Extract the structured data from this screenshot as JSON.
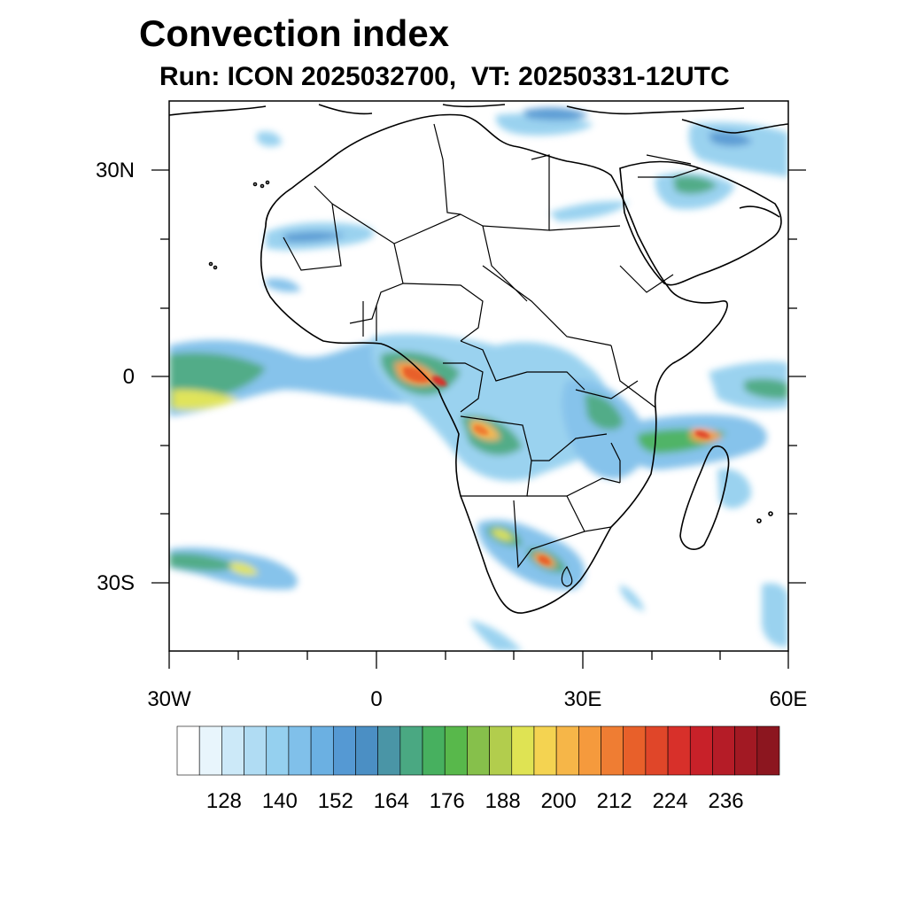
{
  "title": "Convection index",
  "subtitle": "Run: ICON 2025032700,  VT: 20250331-12UTC",
  "map": {
    "lon_range": [
      -30,
      60
    ],
    "lat_range": [
      -40,
      40
    ],
    "lon_tick_labels": [
      "30W",
      "0",
      "30E",
      "60E"
    ],
    "lat_tick_labels": [
      "30N",
      "0",
      "30S"
    ],
    "field": "convection index",
    "features": [
      "coastlines",
      "country borders"
    ]
  },
  "colorbar": {
    "labels": [
      "128",
      "140",
      "152",
      "164",
      "176",
      "188",
      "200",
      "212",
      "224",
      "236"
    ],
    "colors": [
      "#ffffff",
      "#e8f5fc",
      "#cce9f8",
      "#b0dcf3",
      "#95d0ef",
      "#80c0ea",
      "#6bb0e2",
      "#5599d3",
      "#4b8fc4",
      "#4a95a6",
      "#4aa882",
      "#47b05f",
      "#58b84b",
      "#86c04b",
      "#b2cd4d",
      "#dfe353",
      "#f4d351",
      "#f6b648",
      "#f59a3d",
      "#ef7d33",
      "#e8602a",
      "#e04629",
      "#d8302a",
      "#c82129",
      "#b51c27",
      "#a21923",
      "#8c161f"
    ]
  },
  "chart_data": {
    "type": "heatmap",
    "title": "Convection index",
    "subtitle": "Run: ICON 2025032700,  VT: 20250331-12UTC",
    "x_ticks": [
      "30W",
      "0",
      "30E",
      "60E"
    ],
    "y_ticks": [
      "30N",
      "0",
      "30S"
    ],
    "xlim": [
      -30,
      60
    ],
    "ylim": [
      -40,
      40
    ],
    "colorbar_ticks": [
      128,
      140,
      152,
      164,
      176,
      188,
      200,
      212,
      224,
      236
    ]
  }
}
